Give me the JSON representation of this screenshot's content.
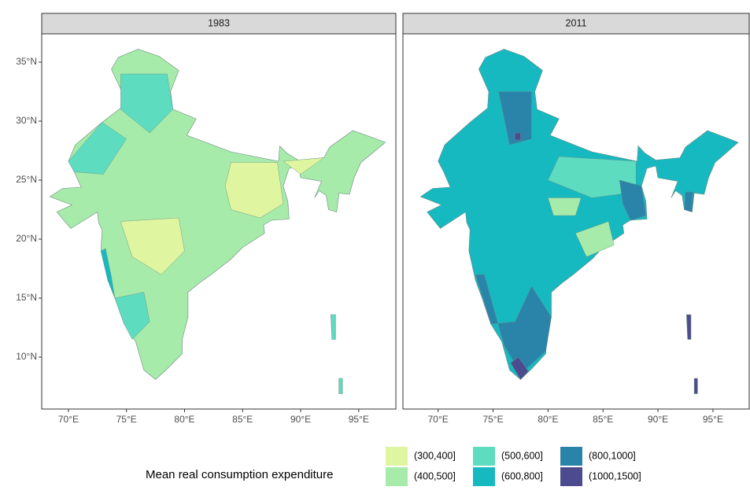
{
  "chart_data": {
    "type": "choropleth",
    "facets": [
      {
        "title": "1983",
        "xlim": [
          67.7,
          98.2
        ]
      },
      {
        "title": "2011",
        "xlim": [
          66.8,
          98.3
        ]
      }
    ],
    "ylim": [
      5.6,
      37.4
    ],
    "xticks": [
      {
        "value": 70,
        "label": "70°E"
      },
      {
        "value": 75,
        "label": "75°E"
      },
      {
        "value": 80,
        "label": "80°E"
      },
      {
        "value": 85,
        "label": "85°E"
      },
      {
        "value": 90,
        "label": "90°E"
      },
      {
        "value": 95,
        "label": "95°E"
      }
    ],
    "yticks": [
      {
        "value": 10,
        "label": "10°N"
      },
      {
        "value": 15,
        "label": "15°N"
      },
      {
        "value": 20,
        "label": "20°N"
      },
      {
        "value": 25,
        "label": "25°N"
      },
      {
        "value": 30,
        "label": "30°N"
      },
      {
        "value": 35,
        "label": "35°N"
      }
    ],
    "legend": {
      "title": "Mean real consumption expenditure",
      "items": [
        {
          "name": "(300,400]",
          "color": "#dff5a0"
        },
        {
          "name": "(400,500]",
          "color": "#a6ebaa"
        },
        {
          "name": "(500,600]",
          "color": "#5edcc0"
        },
        {
          "name": "(600,800]",
          "color": "#17b9c1"
        },
        {
          "name": "(800,1000]",
          "color": "#2a84aa"
        },
        {
          "name": "(1000,1500]",
          "color": "#4d4b8f"
        }
      ]
    }
  }
}
